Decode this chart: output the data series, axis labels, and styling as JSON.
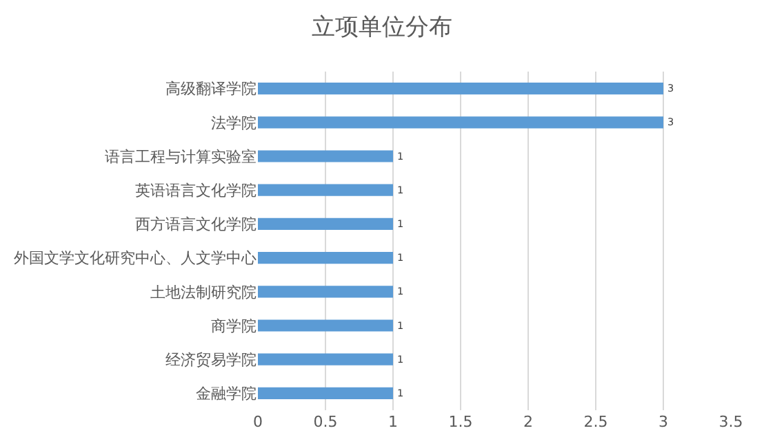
{
  "chart_data": {
    "type": "bar",
    "orientation": "horizontal",
    "title": "立项单位分布",
    "categories": [
      "高级翻译学院",
      "法学院",
      "语言工程与计算实验室",
      "英语语言文化学院",
      "西方语言文化学院",
      "外国文学文化研究中心、人文学中心",
      "土地法制研究院",
      "商学院",
      "经济贸易学院",
      "金融学院"
    ],
    "values": [
      3,
      3,
      1,
      1,
      1,
      1,
      1,
      1,
      1,
      1
    ],
    "color": "#5b9bd5",
    "xlim": [
      0,
      3.5
    ],
    "xticks": [
      0,
      0.5,
      1,
      1.5,
      2,
      2.5,
      3,
      3.5
    ],
    "grid": "x",
    "legend": false,
    "data_labels": true
  }
}
